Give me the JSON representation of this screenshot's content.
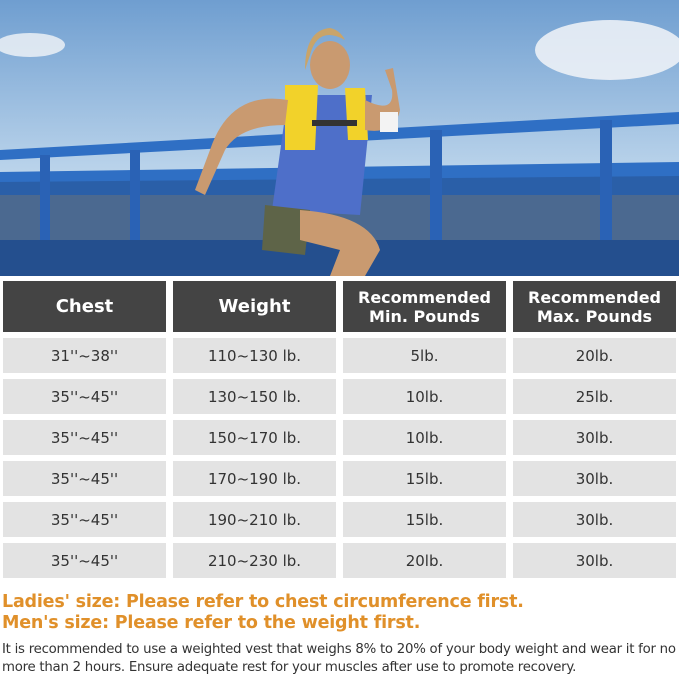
{
  "table": {
    "headers": [
      {
        "line1": "Chest",
        "line2": ""
      },
      {
        "line1": "Weight",
        "line2": ""
      },
      {
        "line1": "Recommended",
        "line2": "Min. Pounds"
      },
      {
        "line1": "Recommended",
        "line2": "Max. Pounds"
      }
    ],
    "rows": [
      [
        "31''~38''",
        "110~130 lb.",
        "5lb.",
        "20lb."
      ],
      [
        "35''~45''",
        "130~150 lb.",
        "10lb.",
        "25lb."
      ],
      [
        "35''~45''",
        "150~170 lb.",
        "10lb.",
        "30lb."
      ],
      [
        "35''~45''",
        "170~190 lb.",
        "15lb.",
        "30lb."
      ],
      [
        "35''~45''",
        "190~210 lb.",
        "15lb.",
        "30lb."
      ],
      [
        "35''~45''",
        "210~230 lb.",
        "20lb.",
        "30lb."
      ]
    ]
  },
  "notes": {
    "ladies": "Ladies' size: Please refer to chest circumference first.",
    "mens": "Men's size: Please refer to the weight first."
  },
  "description": "It is recommended to use a weighted vest that weighs 8% to 20% of your body weight and wear it for no more than 2 hours. Ensure adequate rest for your muscles after use to promote recovery.",
  "colors": {
    "header_bg": "#444444",
    "cell_bg": "#e3e3e3",
    "accent": "#e0902a",
    "vest": "#f2d22a",
    "railing": "#2f6fc4"
  }
}
